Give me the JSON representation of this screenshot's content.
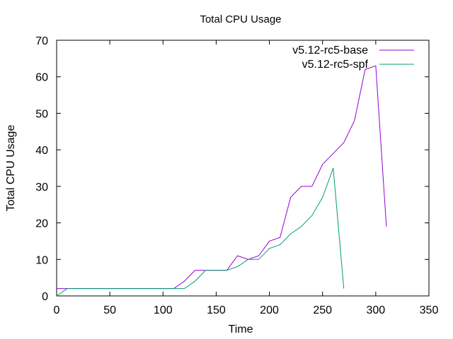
{
  "chart_data": {
    "type": "line",
    "title": "Total CPU Usage",
    "xlabel": "Time",
    "ylabel": "Total CPU Usage",
    "xlim": [
      0,
      350
    ],
    "ylim": [
      0,
      70
    ],
    "xticks": [
      0,
      50,
      100,
      150,
      200,
      250,
      300,
      350
    ],
    "yticks": [
      0,
      10,
      20,
      30,
      40,
      50,
      60,
      70
    ],
    "grid": false,
    "legend_position": "top-right",
    "series": [
      {
        "name": "v5.12-rc5-base",
        "color": "#9400d3",
        "x": [
          0,
          10,
          20,
          30,
          40,
          50,
          60,
          70,
          80,
          90,
          100,
          110,
          120,
          130,
          140,
          150,
          160,
          170,
          180,
          190,
          200,
          210,
          220,
          230,
          240,
          250,
          260,
          270,
          280,
          290,
          300,
          310
        ],
        "y": [
          2,
          2,
          2,
          2,
          2,
          2,
          2,
          2,
          2,
          2,
          2,
          2,
          4,
          7,
          7,
          7,
          7,
          11,
          10,
          11,
          15,
          16,
          27,
          30,
          30,
          36,
          39,
          42,
          48,
          62,
          63,
          19
        ]
      },
      {
        "name": "v5.12-rc5-spf",
        "color": "#009e73",
        "x": [
          0,
          10,
          20,
          30,
          40,
          50,
          60,
          70,
          80,
          90,
          100,
          110,
          120,
          130,
          140,
          150,
          160,
          170,
          180,
          190,
          200,
          210,
          220,
          230,
          240,
          250,
          260,
          270
        ],
        "y": [
          0,
          2,
          2,
          2,
          2,
          2,
          2,
          2,
          2,
          2,
          2,
          2,
          2,
          4,
          7,
          7,
          7,
          8,
          10,
          10,
          13,
          14,
          17,
          19,
          22,
          27,
          35,
          2
        ]
      }
    ]
  }
}
